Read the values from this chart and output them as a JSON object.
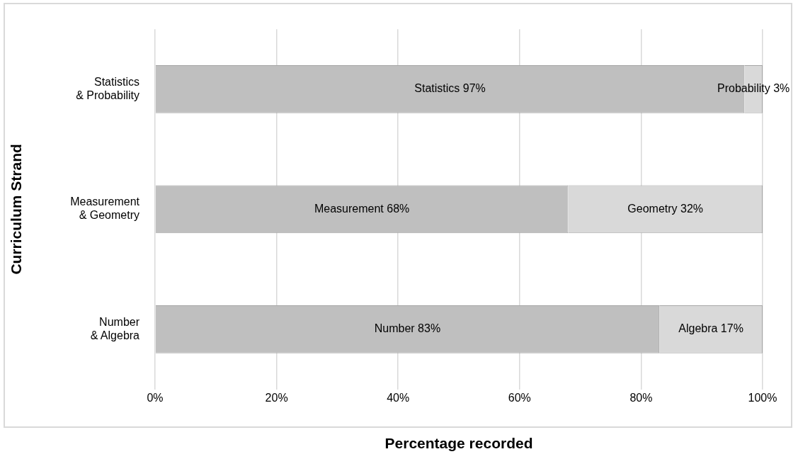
{
  "chart_data": {
    "type": "bar",
    "orientation": "horizontal",
    "stacked": true,
    "xlabel": "Percentage recorded",
    "ylabel": "Curriculum Strand",
    "categories": [
      "Statistics\n& Probability",
      "Measurement\n& Geometry",
      "Number\n& Algebra"
    ],
    "series": [
      {
        "color": "#bfbfbf",
        "values": [
          97,
          68,
          83
        ],
        "value_labels": [
          "Statistics 97%",
          "Measurement 68%",
          "Number 83%"
        ]
      },
      {
        "color": "#d9d9d9",
        "values": [
          3,
          32,
          17
        ],
        "value_labels": [
          "Probability 3%",
          "Geometry 32%",
          "Algebra 17%"
        ]
      }
    ],
    "xlim": [
      0,
      100
    ],
    "xticks": [
      {
        "value": 0,
        "label": "0%"
      },
      {
        "value": 20,
        "label": "20%"
      },
      {
        "value": 40,
        "label": "40%"
      },
      {
        "value": 60,
        "label": "60%"
      },
      {
        "value": 80,
        "label": "80%"
      },
      {
        "value": 100,
        "label": "100%"
      }
    ],
    "grid": "x",
    "legend": false
  }
}
